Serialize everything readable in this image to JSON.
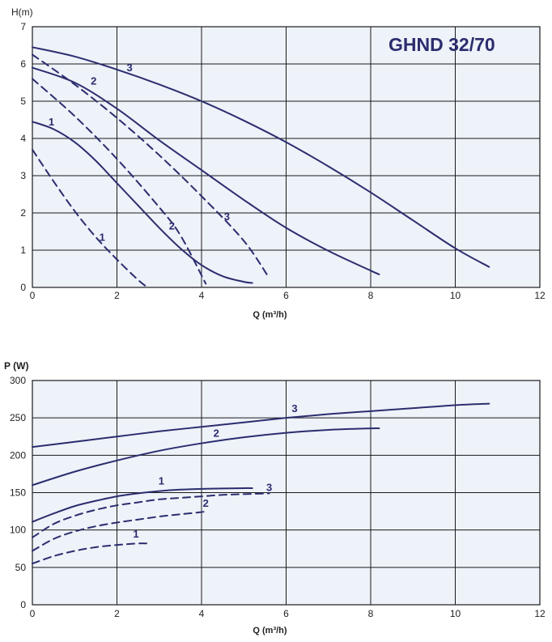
{
  "colors": {
    "curve": "#2b2d6e",
    "grid": "#1a1a1a",
    "plot_bg": "#eef2f9",
    "title": "#2b2d6e"
  },
  "chart_data": [
    {
      "type": "line",
      "title": "GHND 32/70",
      "ylabel": "H(m)",
      "xlabel": "Q (m³/h)",
      "xlim": [
        0,
        12
      ],
      "ylim": [
        0,
        7
      ],
      "xticks": [
        "0",
        "2",
        "4",
        "6",
        "8",
        "10",
        "12"
      ],
      "yticks": [
        "0",
        "1",
        "2",
        "3",
        "4",
        "5",
        "6",
        "7"
      ],
      "grid": true,
      "series": [
        {
          "name": "3",
          "style": "solid",
          "label_at": [
            2.3,
            5.8
          ],
          "points": [
            [
              0,
              6.45
            ],
            [
              1,
              6.2
            ],
            [
              2,
              5.85
            ],
            [
              3,
              5.45
            ],
            [
              4,
              5.0
            ],
            [
              5,
              4.48
            ],
            [
              6,
              3.9
            ],
            [
              7,
              3.25
            ],
            [
              8,
              2.55
            ],
            [
              9,
              1.8
            ],
            [
              10,
              1.05
            ],
            [
              10.8,
              0.55
            ]
          ]
        },
        {
          "name": "2",
          "style": "solid",
          "label_at": [
            1.45,
            5.45
          ],
          "points": [
            [
              0,
              5.9
            ],
            [
              1,
              5.5
            ],
            [
              2,
              4.8
            ],
            [
              3,
              3.95
            ],
            [
              4,
              3.15
            ],
            [
              5,
              2.35
            ],
            [
              6,
              1.6
            ],
            [
              7,
              0.98
            ],
            [
              8,
              0.45
            ],
            [
              8.2,
              0.35
            ]
          ]
        },
        {
          "name": "1",
          "style": "solid",
          "label_at": [
            0.45,
            4.35
          ],
          "points": [
            [
              0,
              4.45
            ],
            [
              0.5,
              4.25
            ],
            [
              1,
              3.9
            ],
            [
              1.5,
              3.4
            ],
            [
              2,
              2.8
            ],
            [
              2.5,
              2.2
            ],
            [
              3,
              1.6
            ],
            [
              3.5,
              1.05
            ],
            [
              4,
              0.6
            ],
            [
              4.5,
              0.3
            ],
            [
              5,
              0.15
            ],
            [
              5.2,
              0.12
            ]
          ]
        },
        {
          "name": "3",
          "style": "dashed",
          "label_at": [
            4.6,
            1.8
          ],
          "points": [
            [
              0,
              6.25
            ],
            [
              1,
              5.45
            ],
            [
              2,
              4.55
            ],
            [
              3,
              3.55
            ],
            [
              4,
              2.45
            ],
            [
              5,
              1.25
            ],
            [
              5.6,
              0.25
            ]
          ]
        },
        {
          "name": "2",
          "style": "dashed",
          "label_at": [
            3.3,
            1.55
          ],
          "points": [
            [
              0,
              5.6
            ],
            [
              1,
              4.6
            ],
            [
              2,
              3.45
            ],
            [
              3,
              2.15
            ],
            [
              3.5,
              1.4
            ],
            [
              4.1,
              0.1
            ]
          ]
        },
        {
          "name": "1",
          "style": "dashed",
          "label_at": [
            1.65,
            1.25
          ],
          "points": [
            [
              0,
              3.7
            ],
            [
              0.5,
              2.85
            ],
            [
              1,
              2.05
            ],
            [
              1.5,
              1.35
            ],
            [
              2,
              0.75
            ],
            [
              2.5,
              0.2
            ],
            [
              2.7,
              0.02
            ]
          ]
        }
      ]
    },
    {
      "type": "line",
      "title": "",
      "ylabel": "P (W)",
      "xlabel": "Q (m³/h)",
      "xlim": [
        0,
        12
      ],
      "ylim": [
        0,
        300
      ],
      "xticks": [
        "0",
        "2",
        "4",
        "6",
        "8",
        "10",
        "12"
      ],
      "yticks": [
        "0",
        "50",
        "100",
        "150",
        "200",
        "250",
        "300"
      ],
      "grid": true,
      "series": [
        {
          "name": "3",
          "style": "solid",
          "label_at": [
            6.2,
            258
          ],
          "points": [
            [
              0,
              211
            ],
            [
              1,
              218
            ],
            [
              2,
              225
            ],
            [
              3,
              232
            ],
            [
              4,
              238
            ],
            [
              5,
              244
            ],
            [
              6,
              250
            ],
            [
              7,
              255
            ],
            [
              8,
              259
            ],
            [
              9,
              263
            ],
            [
              10,
              267
            ],
            [
              10.8,
              269
            ]
          ]
        },
        {
          "name": "2",
          "style": "solid",
          "label_at": [
            4.35,
            225
          ],
          "points": [
            [
              0,
              160
            ],
            [
              1,
              178
            ],
            [
              2,
              193
            ],
            [
              3,
              206
            ],
            [
              4,
              216
            ],
            [
              5,
              224
            ],
            [
              6,
              230
            ],
            [
              7,
              234
            ],
            [
              8,
              236
            ],
            [
              8.2,
              236
            ]
          ]
        },
        {
          "name": "1",
          "style": "solid",
          "label_at": [
            3.05,
            161
          ],
          "points": [
            [
              0,
              111
            ],
            [
              0.5,
              122
            ],
            [
              1,
              132
            ],
            [
              1.5,
              139
            ],
            [
              2,
              145
            ],
            [
              2.5,
              149
            ],
            [
              3,
              152
            ],
            [
              3.5,
              154
            ],
            [
              4,
              155
            ],
            [
              4.5,
              155.5
            ],
            [
              5,
              156
            ],
            [
              5.2,
              156
            ]
          ]
        },
        {
          "name": "3",
          "style": "dashed",
          "label_at": [
            5.6,
            152
          ],
          "points": [
            [
              0,
              90
            ],
            [
              0.5,
              108
            ],
            [
              1,
              119
            ],
            [
              1.5,
              127
            ],
            [
              2,
              133
            ],
            [
              2.5,
              137
            ],
            [
              3,
              141
            ],
            [
              3.5,
              143
            ],
            [
              4,
              145
            ],
            [
              4.5,
              147
            ],
            [
              5,
              148
            ],
            [
              5.6,
              149
            ]
          ]
        },
        {
          "name": "2",
          "style": "dashed",
          "label_at": [
            4.1,
            131
          ],
          "points": [
            [
              0,
              72
            ],
            [
              0.5,
              88
            ],
            [
              1,
              98
            ],
            [
              1.5,
              105
            ],
            [
              2,
              110
            ],
            [
              2.5,
              114
            ],
            [
              3,
              118
            ],
            [
              3.5,
              121
            ],
            [
              4,
              124
            ],
            [
              4.1,
              125
            ]
          ]
        },
        {
          "name": "1",
          "style": "dashed",
          "label_at": [
            2.45,
            90
          ],
          "points": [
            [
              0,
              55
            ],
            [
              0.5,
              65
            ],
            [
              1,
              72
            ],
            [
              1.5,
              77
            ],
            [
              2,
              80
            ],
            [
              2.5,
              82
            ],
            [
              2.7,
              82
            ]
          ]
        }
      ]
    }
  ]
}
